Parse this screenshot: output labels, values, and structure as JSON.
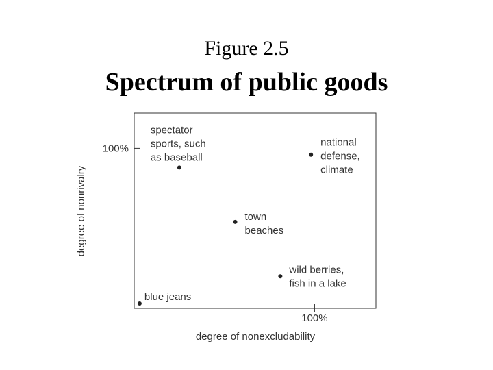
{
  "chart_data": {
    "type": "scatter",
    "title": "Figure 2.5",
    "subtitle": "Spectrum of public goods",
    "x_label": "degree of nonexcludability",
    "y_label": "degree of nonrivalry",
    "x": [
      3,
      25,
      98,
      56,
      81
    ],
    "values": [
      3,
      88,
      96,
      54,
      20
    ],
    "labels": [
      [
        "blue jeans"
      ],
      [
        "spectator",
        "sports, such",
        "as baseball"
      ],
      [
        "national",
        "defense,",
        "climate"
      ],
      [
        "town",
        "beaches"
      ],
      [
        "wild berries,",
        "fish in a lake"
      ]
    ],
    "xlim": [
      0,
      134
    ],
    "ylim": [
      0,
      122
    ],
    "xticks": [
      {
        "value": 100,
        "label": "100%"
      }
    ],
    "yticks": [
      {
        "value": 100,
        "label": "100%"
      }
    ],
    "color": "#222222"
  }
}
